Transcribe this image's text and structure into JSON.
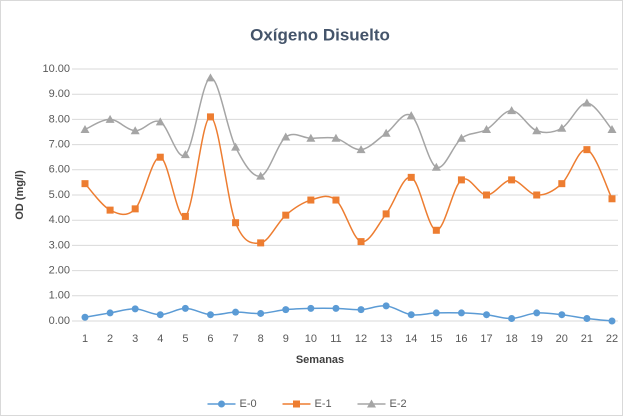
{
  "chart_data": {
    "type": "line",
    "title": "Oxígeno Disuelto",
    "xlabel": "Semanas",
    "ylabel": "OD (mg/l)",
    "categories": [
      "1",
      "2",
      "3",
      "4",
      "5",
      "6",
      "7",
      "8",
      "9",
      "10",
      "11",
      "12",
      "13",
      "14",
      "15",
      "16",
      "17",
      "18",
      "19",
      "20",
      "21",
      "22"
    ],
    "series": [
      {
        "name": "E-0",
        "color": "#5b9bd5",
        "marker": "circle",
        "values": [
          0.15,
          0.32,
          0.48,
          0.25,
          0.5,
          0.25,
          0.35,
          0.3,
          0.45,
          0.5,
          0.5,
          0.45,
          0.6,
          0.25,
          0.32,
          0.32,
          0.25,
          0.1,
          0.32,
          0.25,
          0.1,
          0.0
        ]
      },
      {
        "name": "E-1",
        "color": "#ed7d31",
        "marker": "square",
        "values": [
          5.45,
          4.4,
          4.45,
          6.5,
          4.15,
          8.1,
          3.9,
          3.1,
          4.2,
          4.8,
          4.8,
          3.15,
          4.25,
          5.7,
          3.6,
          5.6,
          5.0,
          5.6,
          5.0,
          5.45,
          6.8,
          4.85
        ]
      },
      {
        "name": "E-2",
        "color": "#a5a5a5",
        "marker": "triangle",
        "values": [
          7.6,
          8.0,
          7.55,
          7.9,
          6.6,
          9.65,
          6.9,
          5.75,
          7.3,
          7.25,
          7.25,
          6.8,
          7.45,
          8.15,
          6.1,
          7.25,
          7.6,
          8.35,
          7.55,
          7.65,
          8.65,
          7.6
        ]
      }
    ],
    "ylim": [
      0,
      10
    ],
    "yticks": [
      {
        "value": 0,
        "label": "0.00"
      },
      {
        "value": 1,
        "label": "1.00"
      },
      {
        "value": 2,
        "label": "2.00"
      },
      {
        "value": 3,
        "label": "3.00"
      },
      {
        "value": 4,
        "label": "4.00"
      },
      {
        "value": 5,
        "label": "5.00"
      },
      {
        "value": 6,
        "label": "6.00"
      },
      {
        "value": 7,
        "label": "7.00"
      },
      {
        "value": 8,
        "label": "8.00"
      },
      {
        "value": 9,
        "label": "9.00"
      },
      {
        "value": 10,
        "label": "10.00"
      }
    ],
    "grid": true,
    "smooth": true,
    "legend": "bottom"
  }
}
